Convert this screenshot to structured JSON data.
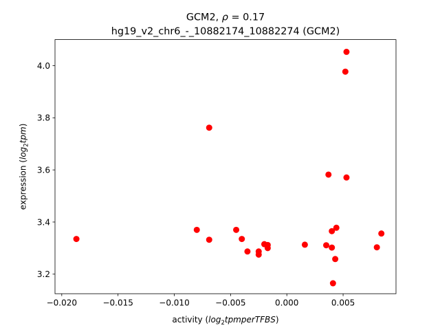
{
  "chart_data": {
    "type": "scatter",
    "title_line1_prefix": "GCM2, ",
    "title_line1_rho": "ρ",
    "title_line1_suffix": " = 0.17",
    "title_line2": "hg19_v2_chr6_-_10882174_10882274 (GCM2)",
    "xlabel_prefix": "activity (",
    "xlabel_math": "log",
    "xlabel_sub": "2",
    "xlabel_math_rest": "tpmperTFBS",
    "xlabel_suffix": ")",
    "ylabel_prefix": "expression (",
    "ylabel_math": "log",
    "ylabel_sub": "2",
    "ylabel_math_rest": "tpm",
    "ylabel_suffix": ")",
    "xlim": [
      -0.0206,
      0.0097
    ],
    "ylim": [
      3.125,
      4.1
    ],
    "xticks": [
      -0.02,
      -0.015,
      -0.01,
      -0.005,
      0.0,
      0.005
    ],
    "xtick_labels": [
      "−0.020",
      "−0.015",
      "−0.010",
      "−0.005",
      "0.000",
      "0.005"
    ],
    "yticks": [
      3.2,
      3.4,
      3.6,
      3.8,
      4.0
    ],
    "ytick_labels": [
      "3.2",
      "3.4",
      "3.6",
      "3.8",
      "4.0"
    ],
    "marker_color": "#ff0000",
    "grid": false,
    "points": [
      {
        "x": -0.0187,
        "y": 3.335
      },
      {
        "x": -0.008,
        "y": 3.37
      },
      {
        "x": -0.0069,
        "y": 3.762
      },
      {
        "x": -0.0069,
        "y": 3.332
      },
      {
        "x": -0.0045,
        "y": 3.37
      },
      {
        "x": -0.004,
        "y": 3.335
      },
      {
        "x": -0.0035,
        "y": 3.287
      },
      {
        "x": -0.0025,
        "y": 3.287
      },
      {
        "x": -0.0025,
        "y": 3.275
      },
      {
        "x": -0.002,
        "y": 3.315
      },
      {
        "x": -0.0017,
        "y": 3.312
      },
      {
        "x": -0.0017,
        "y": 3.3
      },
      {
        "x": 0.0016,
        "y": 3.313
      },
      {
        "x": 0.0035,
        "y": 3.311
      },
      {
        "x": 0.0037,
        "y": 3.582
      },
      {
        "x": 0.004,
        "y": 3.365
      },
      {
        "x": 0.004,
        "y": 3.302
      },
      {
        "x": 0.0041,
        "y": 3.165
      },
      {
        "x": 0.0043,
        "y": 3.258
      },
      {
        "x": 0.0044,
        "y": 3.378
      },
      {
        "x": 0.0052,
        "y": 3.977
      },
      {
        "x": 0.0053,
        "y": 4.053
      },
      {
        "x": 0.0053,
        "y": 3.571
      },
      {
        "x": 0.008,
        "y": 3.303
      },
      {
        "x": 0.0084,
        "y": 3.356
      }
    ]
  }
}
